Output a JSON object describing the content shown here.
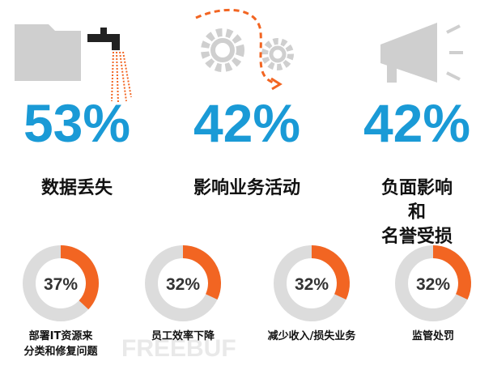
{
  "chart_data": [
    {
      "type": "stat",
      "categories": [
        "数据丢失",
        "影响业务活动",
        "负面影响和\n名誉受损"
      ],
      "values": [
        53,
        42,
        42
      ],
      "value_labels": [
        "53%",
        "42%",
        "42%"
      ],
      "color": "#1a9ad6"
    },
    {
      "type": "donut",
      "categories": [
        "部署IT资源来\n分类和修复问题",
        "员工效率下降",
        "减少收入/损失业务",
        "监管处罚"
      ],
      "values": [
        37,
        32,
        32,
        32
      ],
      "value_labels": [
        "37%",
        "32%",
        "32%",
        "32%"
      ],
      "color": "#f26522",
      "track_color": "#dcdcdc"
    }
  ],
  "watermark": "FREEBUF"
}
